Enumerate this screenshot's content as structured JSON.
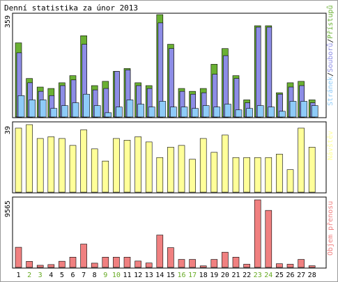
{
  "title": "Denní statistika za únor 2013",
  "colors": {
    "access": "#6ab033",
    "files": "#8d8de6",
    "pages": "#8ecbf8",
    "visitors": "#ffff99",
    "traffic": "#f08080",
    "weekday_label": "#000000",
    "weekend_label": "#66aa22",
    "frame": "#9a9a9a",
    "panel_border": "#000000"
  },
  "chart_data": [
    {
      "type": "bar",
      "title": "Denní statistika za únor 2013",
      "categories": [
        "1",
        "2",
        "3",
        "4",
        "5",
        "6",
        "7",
        "8",
        "9",
        "10",
        "11",
        "12",
        "13",
        "14",
        "15",
        "16",
        "17",
        "18",
        "19",
        "20",
        "21",
        "22",
        "23",
        "24",
        "25",
        "26",
        "27",
        "28"
      ],
      "weekend_days": [
        "2",
        "3",
        "9",
        "10",
        "16",
        "17",
        "23",
        "24"
      ],
      "ymax_label": "359",
      "ylim": [
        0,
        359
      ],
      "legend_position": "right",
      "series": [
        {
          "name": "Přístupů",
          "color_key": "access",
          "values": [
            260,
            135,
            105,
            100,
            120,
            145,
            285,
            110,
            125,
            160,
            170,
            120,
            110,
            359,
            255,
            100,
            90,
            100,
            185,
            240,
            145,
            60,
            320,
            320,
            85,
            120,
            125,
            60
          ]
        },
        {
          "name": "Souborů",
          "color_key": "files",
          "values": [
            225,
            120,
            90,
            75,
            110,
            130,
            255,
            95,
            100,
            160,
            165,
            110,
            100,
            330,
            240,
            90,
            80,
            85,
            150,
            215,
            135,
            50,
            315,
            315,
            80,
            105,
            110,
            50
          ]
        },
        {
          "name": "Stránek",
          "color_key": "pages",
          "values": [
            75,
            60,
            60,
            30,
            40,
            50,
            80,
            40,
            15,
            35,
            60,
            45,
            35,
            55,
            35,
            35,
            30,
            40,
            35,
            45,
            25,
            30,
            40,
            35,
            20,
            55,
            55,
            40
          ]
        }
      ]
    },
    {
      "type": "bar",
      "categories": [
        "1",
        "2",
        "3",
        "4",
        "5",
        "6",
        "7",
        "8",
        "9",
        "10",
        "11",
        "12",
        "13",
        "14",
        "15",
        "16",
        "17",
        "18",
        "19",
        "20",
        "21",
        "22",
        "23",
        "24",
        "25",
        "26",
        "27",
        "28"
      ],
      "ymax_label": "39",
      "ylim": [
        0,
        39
      ],
      "legend_position": "right",
      "series": [
        {
          "name": "Návštěv",
          "color_key": "visitors",
          "values": [
            37,
            39,
            31,
            32,
            31,
            27,
            36,
            25,
            18,
            31,
            30,
            32,
            29,
            20,
            26,
            27,
            19,
            31,
            23,
            33,
            20,
            20,
            20,
            20,
            22,
            13,
            37,
            26
          ]
        }
      ]
    },
    {
      "type": "bar",
      "categories": [
        "1",
        "2",
        "3",
        "4",
        "5",
        "6",
        "7",
        "8",
        "9",
        "10",
        "11",
        "12",
        "13",
        "14",
        "15",
        "16",
        "17",
        "18",
        "19",
        "20",
        "21",
        "22",
        "23",
        "24",
        "25",
        "26",
        "27",
        "28"
      ],
      "ymax_label": "9565",
      "ylim": [
        0,
        9565
      ],
      "legend_position": "right",
      "series": [
        {
          "name": "Objem přenosu",
          "color_key": "traffic",
          "values": [
            2850,
            850,
            300,
            400,
            870,
            1450,
            3300,
            600,
            1450,
            1450,
            1450,
            900,
            620,
            4580,
            2800,
            1130,
            1130,
            220,
            1130,
            2150,
            1450,
            450,
            9565,
            8070,
            520,
            450,
            1130,
            230
          ]
        }
      ]
    }
  ]
}
